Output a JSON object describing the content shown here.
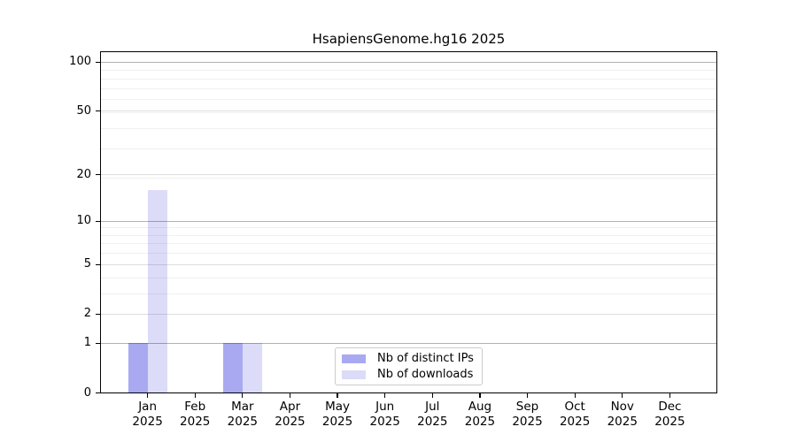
{
  "page": {
    "background": "#ffffff"
  },
  "chart_data": {
    "type": "bar",
    "title": "HsapiensGenome.hg16 2025",
    "months": [
      "Jan",
      "Feb",
      "Mar",
      "Apr",
      "May",
      "Jun",
      "Jul",
      "Aug",
      "Sep",
      "Oct",
      "Nov",
      "Dec"
    ],
    "year": "2025",
    "series": [
      {
        "name": "Nb of distinct IPs",
        "color": "#a9a9f1",
        "values": [
          1,
          0,
          1,
          0,
          0,
          0,
          0,
          0,
          0,
          0,
          0,
          0
        ]
      },
      {
        "name": "Nb of downloads",
        "color": "#dcdcf8",
        "values": [
          16,
          0,
          1,
          0,
          0,
          0,
          0,
          0,
          0,
          0,
          0,
          0
        ]
      }
    ],
    "yscale": "log1p",
    "y_major_ticks": [
      0,
      1,
      2,
      5,
      10,
      20,
      50,
      100
    ],
    "y_minor_gridlines": [
      3,
      4,
      6,
      7,
      8,
      9,
      19,
      29,
      39,
      49,
      59,
      69,
      79,
      89
    ],
    "ylim": [
      0,
      116.8
    ],
    "grid": true,
    "legend_position": "lower-center"
  }
}
